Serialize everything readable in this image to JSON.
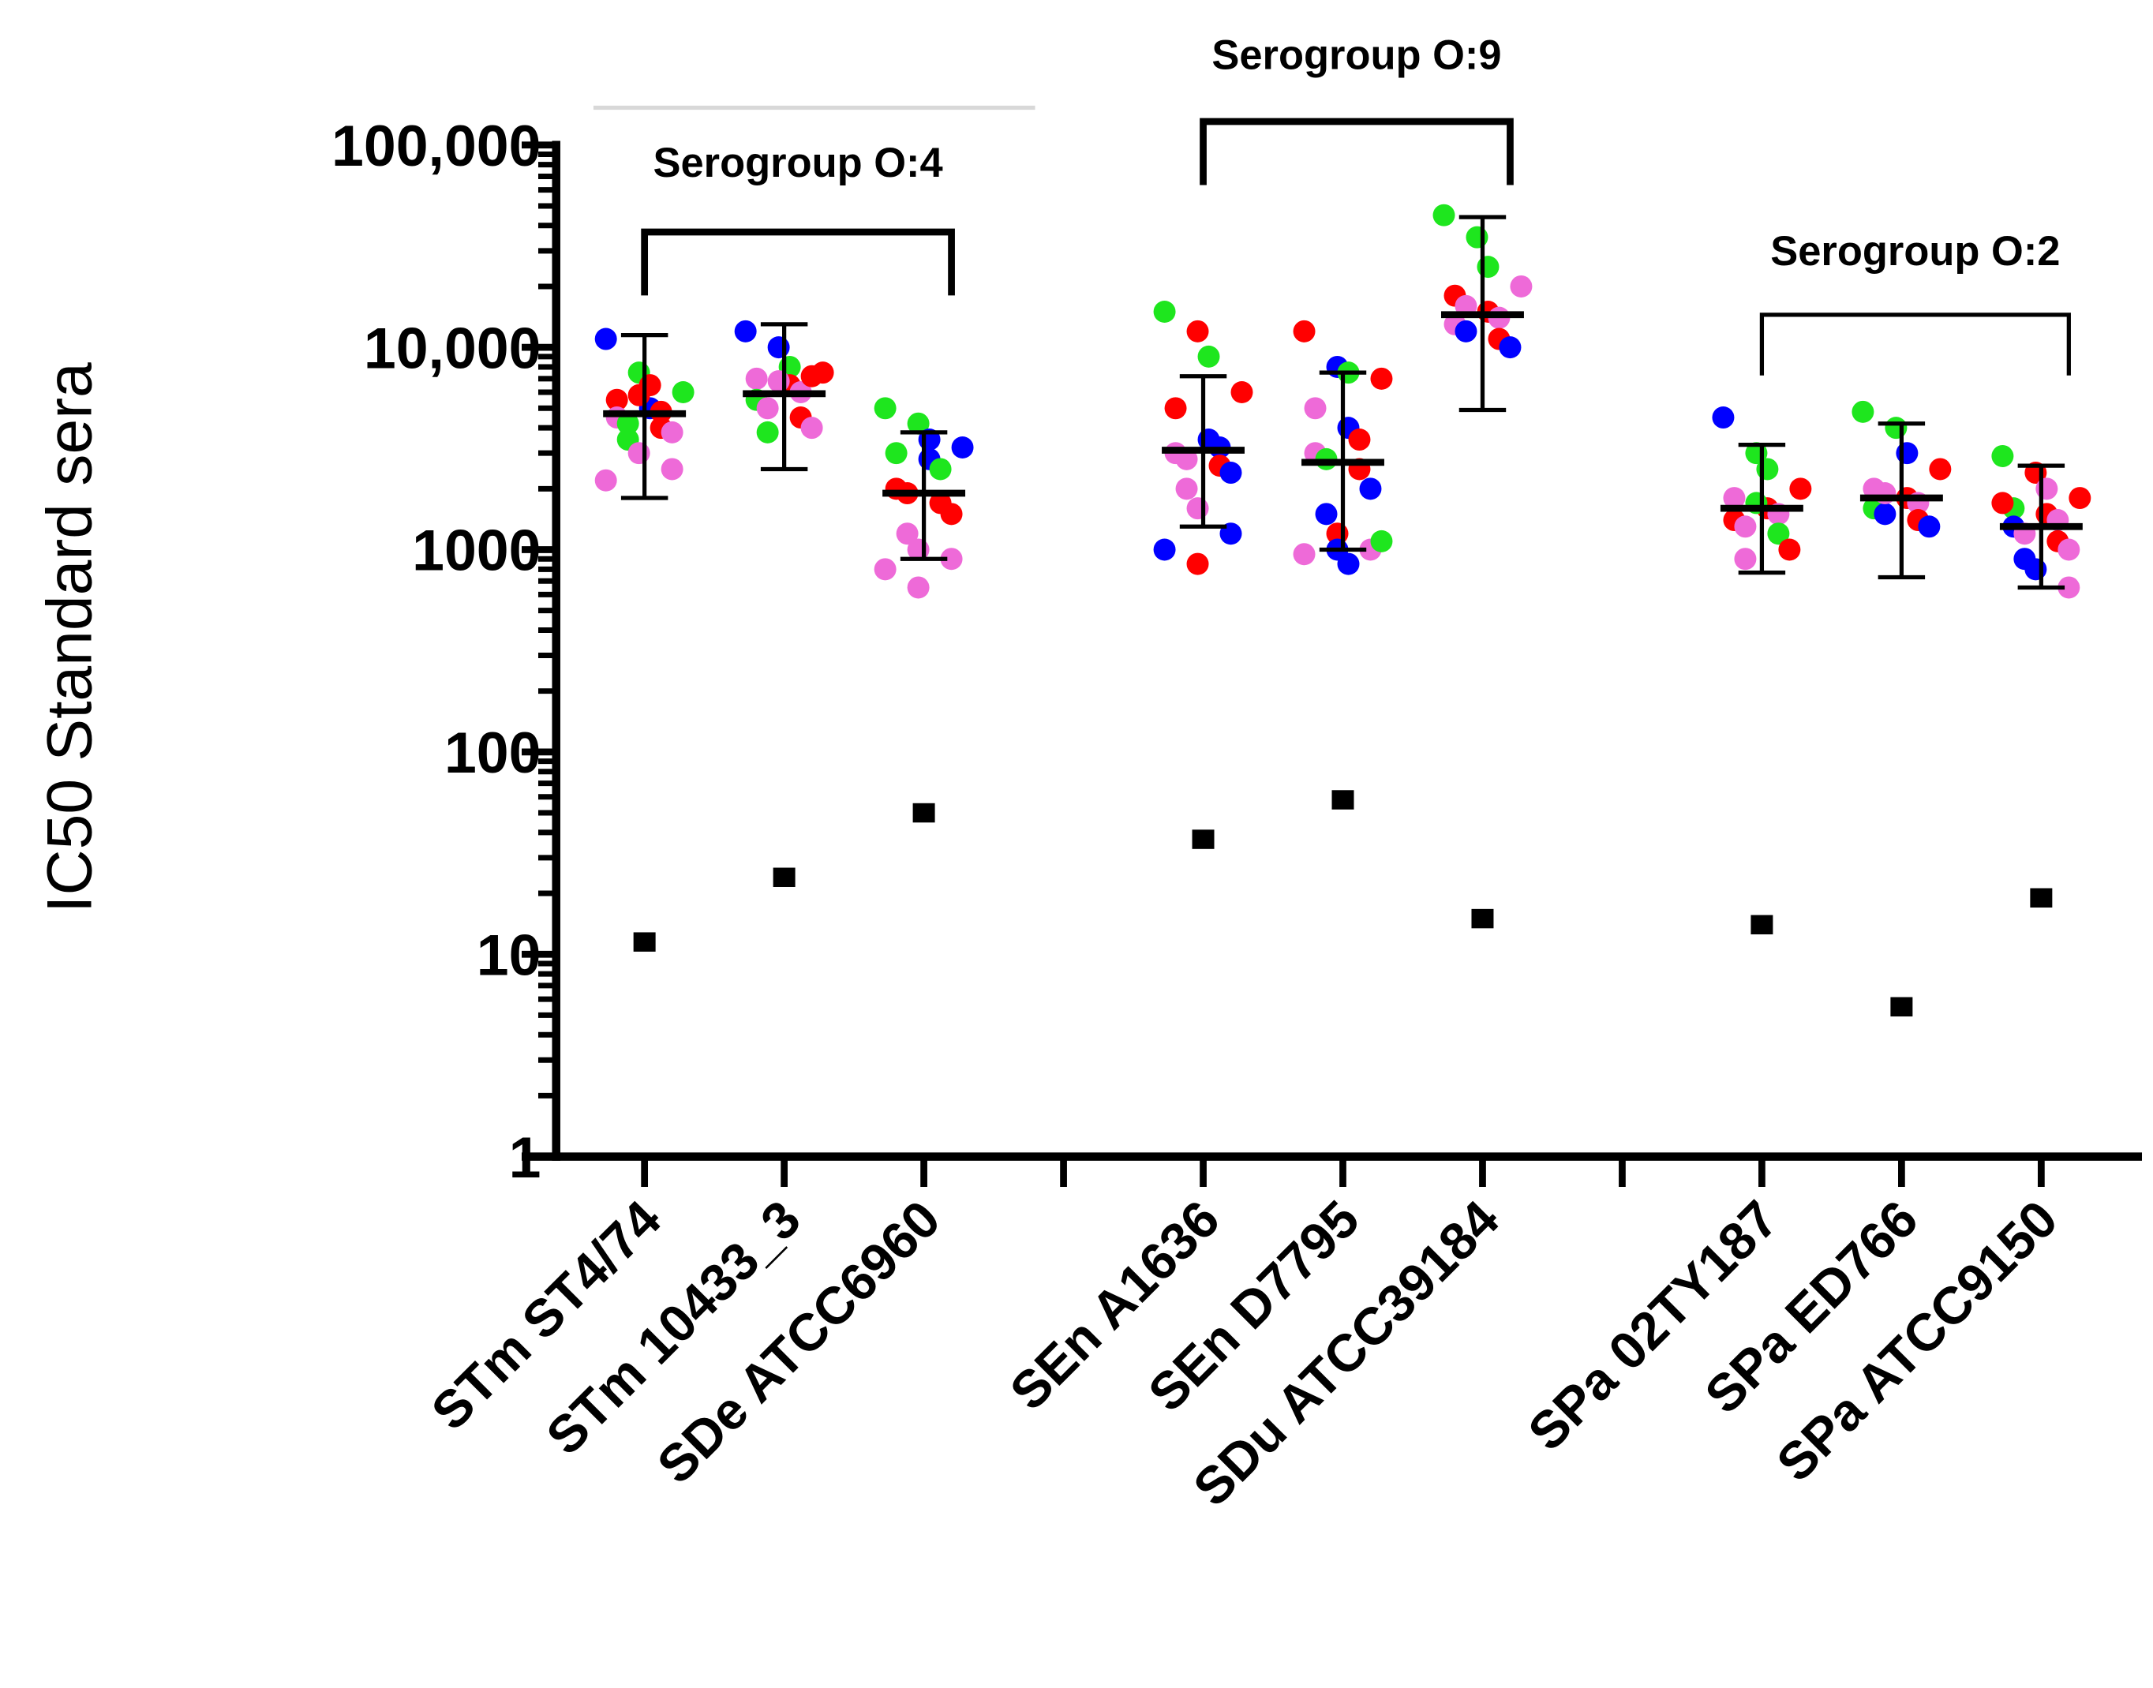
{
  "chart_data": {
    "type": "scatter",
    "subtype": "dot-plot-with-mean-and-sd",
    "title": "",
    "xlabel": "",
    "ylabel": "IC50 Standard sera",
    "yscale": "log",
    "ylim": [
      1,
      100000
    ],
    "yticks": [
      1,
      10,
      100,
      1000,
      10000,
      100000
    ],
    "ytick_labels": [
      "1",
      "10",
      "100",
      "1000",
      "10,000",
      "100,000"
    ],
    "grid": false,
    "colors": {
      "r": "#ff0000",
      "g": "#1ee61e",
      "b": "#0000ff",
      "p": "#ee6ad8",
      "control": "#000000"
    },
    "categories": [
      "STm ST4/74",
      "STm 10433_3",
      "SDe ATCC6960",
      "SEn A1636",
      "SEn D7795",
      "SDu ATCC39184",
      "SPa 02TY187",
      "SPa ED766",
      "SPa ATCC9150"
    ],
    "slots": [
      0,
      1,
      2,
      4,
      5,
      6,
      8,
      9,
      10
    ],
    "groups": [
      {
        "label": "Serogroup O:4",
        "from": 0,
        "to": 2
      },
      {
        "label": "Serogroup O:9",
        "from": 3,
        "to": 5
      },
      {
        "label": "Serogroup O:2",
        "from": 6,
        "to": 8
      }
    ],
    "mean": [
      4700,
      5900,
      1900,
      3100,
      2700,
      14500,
      1600,
      1800,
      1300
    ],
    "sd_upper": [
      11500,
      13000,
      3800,
      7200,
      7500,
      44000,
      3300,
      4200,
      2600
    ],
    "sd_lower": [
      1800,
      2500,
      900,
      1300,
      1000,
      4900,
      770,
      730,
      650
    ],
    "control_square": [
      11.5,
      24,
      50,
      37,
      58,
      15,
      14,
      5.5,
      19
    ],
    "points": [
      [
        [
          11000,
          "b"
        ],
        [
          7500,
          "g"
        ],
        [
          6500,
          "r"
        ],
        [
          6000,
          "g"
        ],
        [
          5500,
          "r"
        ],
        [
          5000,
          "b"
        ],
        [
          4800,
          "r"
        ],
        [
          4500,
          "p"
        ],
        [
          4200,
          "g"
        ],
        [
          4000,
          "r"
        ],
        [
          3800,
          "p"
        ],
        [
          3500,
          "g"
        ],
        [
          3000,
          "p"
        ],
        [
          2500,
          "p"
        ],
        [
          2200,
          "p"
        ],
        [
          5800,
          "r"
        ]
      ],
      [
        [
          12000,
          "b"
        ],
        [
          10000,
          "b"
        ],
        [
          8000,
          "g"
        ],
        [
          7500,
          "r"
        ],
        [
          7000,
          "p"
        ],
        [
          6500,
          "r"
        ],
        [
          6000,
          "p"
        ],
        [
          5500,
          "g"
        ],
        [
          5000,
          "p"
        ],
        [
          4500,
          "r"
        ],
        [
          4000,
          "p"
        ],
        [
          3800,
          "g"
        ],
        [
          6800,
          "p"
        ],
        [
          7200,
          "r"
        ]
      ],
      [
        [
          5000,
          "g"
        ],
        [
          4200,
          "g"
        ],
        [
          3500,
          "b"
        ],
        [
          3200,
          "b"
        ],
        [
          3000,
          "g"
        ],
        [
          2800,
          "b"
        ],
        [
          2500,
          "g"
        ],
        [
          2000,
          "r"
        ],
        [
          1900,
          "r"
        ],
        [
          1700,
          "r"
        ],
        [
          1500,
          "r"
        ],
        [
          1200,
          "p"
        ],
        [
          1000,
          "p"
        ],
        [
          900,
          "p"
        ],
        [
          800,
          "p"
        ],
        [
          650,
          "p"
        ]
      ],
      [
        [
          15000,
          "g"
        ],
        [
          12000,
          "r"
        ],
        [
          9000,
          "g"
        ],
        [
          6000,
          "r"
        ],
        [
          5000,
          "r"
        ],
        [
          3500,
          "b"
        ],
        [
          3200,
          "b"
        ],
        [
          3000,
          "p"
        ],
        [
          2800,
          "p"
        ],
        [
          2600,
          "r"
        ],
        [
          2400,
          "b"
        ],
        [
          2000,
          "p"
        ],
        [
          1600,
          "p"
        ],
        [
          1200,
          "b"
        ],
        [
          1000,
          "b"
        ],
        [
          850,
          "r"
        ]
      ],
      [
        [
          12000,
          "r"
        ],
        [
          8000,
          "b"
        ],
        [
          7500,
          "g"
        ],
        [
          7000,
          "r"
        ],
        [
          5000,
          "p"
        ],
        [
          4000,
          "b"
        ],
        [
          3500,
          "r"
        ],
        [
          3000,
          "p"
        ],
        [
          2800,
          "g"
        ],
        [
          2500,
          "r"
        ],
        [
          2000,
          "b"
        ],
        [
          1500,
          "b"
        ],
        [
          1200,
          "r"
        ],
        [
          1000,
          "p"
        ],
        [
          950,
          "p"
        ],
        [
          1000,
          "b"
        ],
        [
          850,
          "b"
        ],
        [
          1100,
          "g"
        ]
      ],
      [
        [
          45000,
          "g"
        ],
        [
          35000,
          "g"
        ],
        [
          25000,
          "g"
        ],
        [
          20000,
          "p"
        ],
        [
          18000,
          "r"
        ],
        [
          15000,
          "r"
        ],
        [
          14000,
          "p"
        ],
        [
          13000,
          "p"
        ],
        [
          12000,
          "b"
        ],
        [
          11000,
          "r"
        ],
        [
          10000,
          "b"
        ],
        [
          16000,
          "p"
        ]
      ],
      [
        [
          4500,
          "b"
        ],
        [
          3000,
          "g"
        ],
        [
          2500,
          "g"
        ],
        [
          2000,
          "r"
        ],
        [
          1800,
          "p"
        ],
        [
          1600,
          "r"
        ],
        [
          1500,
          "p"
        ],
        [
          1400,
          "r"
        ],
        [
          1300,
          "p"
        ],
        [
          1200,
          "g"
        ],
        [
          1000,
          "r"
        ],
        [
          900,
          "p"
        ],
        [
          1700,
          "g"
        ]
      ],
      [
        [
          4800,
          "g"
        ],
        [
          4000,
          "g"
        ],
        [
          3000,
          "b"
        ],
        [
          2500,
          "r"
        ],
        [
          2000,
          "p"
        ],
        [
          1800,
          "r"
        ],
        [
          1700,
          "p"
        ],
        [
          1600,
          "g"
        ],
        [
          1500,
          "b"
        ],
        [
          1400,
          "r"
        ],
        [
          1300,
          "b"
        ],
        [
          1900,
          "p"
        ]
      ],
      [
        [
          2900,
          "g"
        ],
        [
          2400,
          "r"
        ],
        [
          2000,
          "p"
        ],
        [
          1800,
          "r"
        ],
        [
          1600,
          "g"
        ],
        [
          1500,
          "r"
        ],
        [
          1400,
          "p"
        ],
        [
          1300,
          "b"
        ],
        [
          1200,
          "p"
        ],
        [
          1100,
          "r"
        ],
        [
          1000,
          "p"
        ],
        [
          900,
          "b"
        ],
        [
          800,
          "b"
        ],
        [
          650,
          "p"
        ],
        [
          1700,
          "r"
        ]
      ]
    ]
  }
}
